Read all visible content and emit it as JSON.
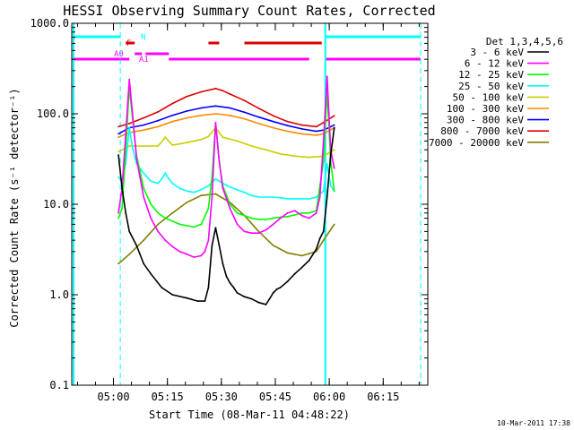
{
  "chart_data": {
    "type": "line",
    "title": "HESSI Observing Summary Count Rates, Corrected",
    "xlabel": "Start Time (08-Mar-11 04:48:22)",
    "ylabel": "Corrected Count Rate (s⁻¹ detector⁻¹)",
    "yscale": "log",
    "ylim": [
      0.1,
      1000.0
    ],
    "xlim_minutes_after_start": [
      0,
      99
    ],
    "x_tick_labels": [
      "05:00",
      "05:15",
      "05:30",
      "05:45",
      "06:00",
      "06:15"
    ],
    "x_ticks_minutes": [
      11.6,
      26.6,
      41.6,
      56.6,
      71.6,
      86.6
    ],
    "y_tick_labels": [
      "0.1",
      "1.0",
      "10.0",
      "100.0",
      "1000.0"
    ],
    "y_ticks": [
      0.1,
      1.0,
      10.0,
      100.0,
      1000.0
    ],
    "legend_title": "Det 1,3,4,5,6",
    "legend_position": "right",
    "series": [
      {
        "name": "3 - 6 keV",
        "color": "#000000",
        "x": [
          13,
          14,
          15,
          16,
          18,
          20,
          22,
          25,
          28,
          32,
          35,
          37,
          38,
          39,
          40,
          41,
          42,
          43,
          44,
          45,
          46,
          48,
          50,
          52,
          54,
          55,
          56,
          57,
          58,
          60,
          62,
          64,
          66,
          68,
          69,
          70,
          71,
          72,
          73
        ],
        "y": [
          35,
          15,
          8,
          5,
          3.5,
          2.2,
          1.7,
          1.2,
          1.0,
          0.92,
          0.85,
          0.85,
          1.2,
          3.5,
          5.5,
          3.5,
          2.2,
          1.6,
          1.35,
          1.2,
          1.05,
          0.95,
          0.9,
          0.82,
          0.78,
          0.9,
          1.05,
          1.15,
          1.2,
          1.4,
          1.7,
          2.0,
          2.4,
          3.2,
          4.2,
          5,
          12,
          35,
          70
        ]
      },
      {
        "name": "6 - 12 keV",
        "color": "#ff00ff",
        "x": [
          13,
          14,
          15,
          16,
          17,
          18,
          20,
          22,
          24,
          26,
          28,
          30,
          32,
          34,
          36,
          37,
          38,
          39,
          40,
          41,
          42,
          44,
          46,
          48,
          50,
          52,
          54,
          56,
          58,
          60,
          62,
          64,
          66,
          68,
          69,
          70,
          71,
          72,
          73
        ],
        "y": [
          8,
          15,
          60,
          240,
          90,
          32,
          12,
          7,
          5,
          4,
          3.4,
          3.0,
          2.8,
          2.6,
          2.7,
          3.0,
          4,
          12,
          80,
          30,
          15,
          9,
          6,
          5,
          4.8,
          4.8,
          5.2,
          6,
          7,
          8,
          8.5,
          7.5,
          7,
          8,
          12,
          50,
          260,
          40,
          25
        ]
      },
      {
        "name": "12 - 25 keV",
        "color": "#00ff00",
        "x": [
          13,
          14,
          15,
          16,
          17,
          18,
          20,
          22,
          24,
          26,
          28,
          30,
          32,
          34,
          36,
          38,
          39,
          40,
          41,
          42,
          44,
          46,
          48,
          50,
          52,
          54,
          56,
          58,
          60,
          62,
          64,
          66,
          68,
          70,
          71,
          72,
          73
        ],
        "y": [
          7,
          9,
          40,
          200,
          80,
          35,
          15,
          10,
          8,
          7,
          6.5,
          6,
          5.8,
          5.6,
          6,
          9,
          20,
          80,
          30,
          16,
          10,
          8,
          7.5,
          7,
          6.8,
          6.8,
          7,
          7.2,
          7.3,
          7.6,
          8,
          8,
          8.5,
          30,
          180,
          30,
          14
        ]
      },
      {
        "name": "25 - 50 keV",
        "color": "#00ffff",
        "x": [
          13,
          14,
          15,
          16,
          17,
          18,
          20,
          22,
          24,
          25,
          26,
          27,
          28,
          30,
          32,
          34,
          36,
          38,
          40,
          42,
          44,
          46,
          48,
          50,
          52,
          54,
          56,
          58,
          60,
          62,
          64,
          66,
          68,
          70,
          71,
          72,
          73
        ],
        "y": [
          20,
          18,
          28,
          70,
          40,
          28,
          22,
          18,
          17,
          19,
          22,
          19,
          17,
          15,
          14,
          13.5,
          14.5,
          16,
          19,
          17,
          15.5,
          14.5,
          13.5,
          12.5,
          12,
          12,
          12,
          11.8,
          11.5,
          11.5,
          11.5,
          11.5,
          12,
          14,
          28,
          16,
          14
        ]
      },
      {
        "name": "50 - 100 keV",
        "color": "#cccc00",
        "x": [
          13,
          16,
          20,
          24,
          26,
          28,
          32,
          36,
          38,
          40,
          42,
          46,
          50,
          54,
          58,
          62,
          66,
          70,
          73
        ],
        "y": [
          38,
          44,
          44,
          44,
          55,
          45,
          48,
          52,
          56,
          70,
          55,
          50,
          44,
          40,
          36,
          34,
          33,
          34,
          40
        ]
      },
      {
        "name": "100 - 300 keV",
        "color": "#ff8800",
        "x": [
          13,
          16,
          20,
          24,
          28,
          32,
          36,
          40,
          44,
          48,
          52,
          56,
          60,
          64,
          68,
          70,
          73
        ],
        "y": [
          55,
          62,
          66,
          72,
          82,
          90,
          96,
          100,
          96,
          88,
          78,
          70,
          64,
          60,
          58,
          60,
          70
        ]
      },
      {
        "name": "300 - 800 keV",
        "color": "#0000ff",
        "x": [
          13,
          16,
          20,
          24,
          28,
          32,
          36,
          40,
          44,
          48,
          52,
          56,
          60,
          64,
          68,
          70,
          73
        ],
        "y": [
          60,
          70,
          75,
          84,
          96,
          107,
          116,
          122,
          116,
          104,
          92,
          82,
          74,
          68,
          64,
          66,
          75
        ]
      },
      {
        "name": "800 - 7000 keV",
        "color": "#dd0000",
        "x": [
          13,
          16,
          20,
          24,
          28,
          32,
          36,
          40,
          42,
          44,
          48,
          52,
          56,
          60,
          64,
          68,
          70,
          73
        ],
        "y": [
          72,
          78,
          90,
          105,
          130,
          155,
          175,
          190,
          180,
          165,
          140,
          115,
          95,
          82,
          75,
          72,
          80,
          95
        ]
      },
      {
        "name": "7000 - 20000 keV",
        "color": "#808000",
        "x": [
          13,
          16,
          20,
          24,
          28,
          32,
          36,
          40,
          44,
          48,
          52,
          56,
          60,
          64,
          68,
          70,
          73
        ],
        "y": [
          2.2,
          2.8,
          4,
          6,
          8,
          10.5,
          12.5,
          13,
          10.5,
          7.5,
          5,
          3.5,
          2.9,
          2.7,
          3,
          4,
          6
        ]
      }
    ],
    "flags": {
      "N": {
        "label": "N",
        "color": "#00ffff",
        "intervals": [
          [
            0,
            13.5
          ],
          [
            70.5,
            97
          ]
        ]
      },
      "F": {
        "label": "F",
        "color": "#dd0000",
        "intervals": [
          [
            15,
            17.5
          ],
          [
            38,
            41
          ],
          [
            48,
            69.5
          ]
        ]
      },
      "A0": {
        "label": "A0",
        "color": "#ff00ff",
        "intervals": [
          [
            0,
            16
          ],
          [
            27,
            66
          ],
          [
            70.5,
            97
          ]
        ]
      },
      "A1": {
        "label": "A1",
        "color": "#ff00ff",
        "intervals": [
          [
            17.5,
            19.5
          ],
          [
            20.5,
            27
          ]
        ]
      }
    },
    "night_boundaries_minutes": [
      13.5,
      70.5
    ],
    "grid": false
  },
  "footer_timestamp": "10-Mar-2011 17:38"
}
